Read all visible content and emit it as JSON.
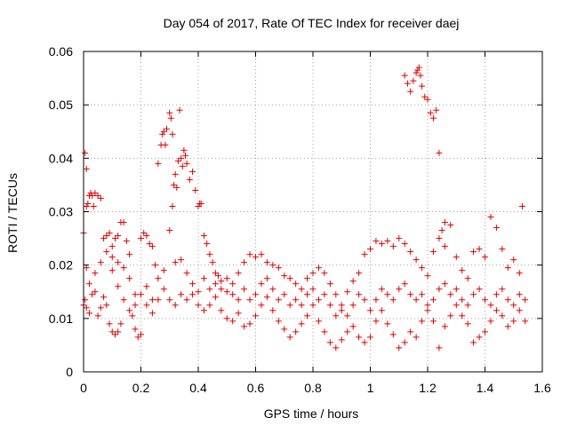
{
  "chart_data": {
    "type": "scatter",
    "title": "Day 054 of 2017, Rate Of TEC Index for receiver daej",
    "xlabel": "GPS time / hours",
    "ylabel": "ROTI / TECUs",
    "xlim": [
      0,
      1.6
    ],
    "ylim": [
      0,
      0.06
    ],
    "x_ticks": [
      0,
      0.2,
      0.4,
      0.6,
      0.8,
      1.0,
      1.2,
      1.4,
      1.6
    ],
    "x_tick_labels": [
      "0",
      "0.2",
      "0.4",
      "0.6",
      "0.8",
      "1",
      "1.2",
      "1.4",
      "1.6"
    ],
    "y_ticks": [
      0,
      0.01,
      0.02,
      0.03,
      0.04,
      0.05,
      0.06
    ],
    "y_tick_labels": [
      "0",
      "0.01",
      "0.02",
      "0.03",
      "0.04",
      "0.05",
      "0.06"
    ],
    "grid": true,
    "marker": "+",
    "marker_color": "#e00000",
    "series": [
      {
        "name": "ROTI",
        "points": [
          [
            0.0,
            0.026
          ],
          [
            0.0,
            0.0125
          ],
          [
            0.005,
            0.041
          ],
          [
            0.01,
            0.038
          ],
          [
            0.01,
            0.0195
          ],
          [
            0.01,
            0.031
          ],
          [
            0.015,
            0.0315
          ],
          [
            0.02,
            0.033
          ],
          [
            0.025,
            0.0335
          ],
          [
            0.03,
            0.033
          ],
          [
            0.035,
            0.031
          ],
          [
            0.04,
            0.0335
          ],
          [
            0.05,
            0.033
          ],
          [
            0.06,
            0.0325
          ],
          [
            0.005,
            0.0135
          ],
          [
            0.01,
            0.012
          ],
          [
            0.02,
            0.011
          ],
          [
            0.03,
            0.0145
          ],
          [
            0.04,
            0.015
          ],
          [
            0.05,
            0.0105
          ],
          [
            0.06,
            0.012
          ],
          [
            0.07,
            0.014
          ],
          [
            0.08,
            0.0125
          ],
          [
            0.09,
            0.009
          ],
          [
            0.1,
            0.0075
          ],
          [
            0.11,
            0.007
          ],
          [
            0.12,
            0.0075
          ],
          [
            0.13,
            0.009
          ],
          [
            0.07,
            0.025
          ],
          [
            0.08,
            0.0255
          ],
          [
            0.09,
            0.026
          ],
          [
            0.1,
            0.0235
          ],
          [
            0.11,
            0.025
          ],
          [
            0.12,
            0.0255
          ],
          [
            0.13,
            0.028
          ],
          [
            0.14,
            0.028
          ],
          [
            0.15,
            0.0245
          ],
          [
            0.16,
            0.022
          ],
          [
            0.17,
            0.0105
          ],
          [
            0.18,
            0.008
          ],
          [
            0.19,
            0.0065
          ],
          [
            0.2,
            0.007
          ],
          [
            0.2,
            0.025
          ],
          [
            0.21,
            0.026
          ],
          [
            0.22,
            0.0255
          ],
          [
            0.23,
            0.024
          ],
          [
            0.24,
            0.0235
          ],
          [
            0.25,
            0.02
          ],
          [
            0.26,
            0.039
          ],
          [
            0.27,
            0.0425
          ],
          [
            0.275,
            0.0445
          ],
          [
            0.28,
            0.045
          ],
          [
            0.285,
            0.0425
          ],
          [
            0.29,
            0.0455
          ],
          [
            0.3,
            0.0485
          ],
          [
            0.305,
            0.0475
          ],
          [
            0.31,
            0.0445
          ],
          [
            0.315,
            0.035
          ],
          [
            0.32,
            0.037
          ],
          [
            0.325,
            0.0345
          ],
          [
            0.33,
            0.0395
          ],
          [
            0.335,
            0.049
          ],
          [
            0.34,
            0.04
          ],
          [
            0.345,
            0.0385
          ],
          [
            0.35,
            0.0415
          ],
          [
            0.355,
            0.0405
          ],
          [
            0.36,
            0.039
          ],
          [
            0.37,
            0.036
          ],
          [
            0.38,
            0.0375
          ],
          [
            0.39,
            0.034
          ],
          [
            0.4,
            0.031
          ],
          [
            0.405,
            0.0315
          ],
          [
            0.41,
            0.0315
          ],
          [
            0.3,
            0.0265
          ],
          [
            0.31,
            0.031
          ],
          [
            0.42,
            0.0255
          ],
          [
            0.43,
            0.024
          ],
          [
            0.44,
            0.022
          ],
          [
            0.45,
            0.0205
          ],
          [
            0.46,
            0.0185
          ],
          [
            0.47,
            0.018
          ],
          [
            0.48,
            0.017
          ],
          [
            0.5,
            0.015
          ],
          [
            0.52,
            0.0145
          ],
          [
            0.54,
            0.0135
          ],
          [
            0.56,
            0.0205
          ],
          [
            0.58,
            0.022
          ],
          [
            0.6,
            0.0215
          ],
          [
            0.62,
            0.022
          ],
          [
            0.64,
            0.0205
          ],
          [
            0.66,
            0.02
          ],
          [
            0.68,
            0.0195
          ],
          [
            0.7,
            0.018
          ],
          [
            0.72,
            0.0175
          ],
          [
            0.74,
            0.0165
          ],
          [
            0.76,
            0.0155
          ],
          [
            0.78,
            0.0175
          ],
          [
            0.8,
            0.0185
          ],
          [
            0.82,
            0.0195
          ],
          [
            0.84,
            0.0185
          ],
          [
            0.86,
            0.0165
          ],
          [
            0.88,
            0.0145
          ],
          [
            0.9,
            0.0125
          ],
          [
            0.92,
            0.015
          ],
          [
            0.94,
            0.017
          ],
          [
            0.96,
            0.0185
          ],
          [
            0.98,
            0.022
          ],
          [
            1.0,
            0.023
          ],
          [
            1.02,
            0.0245
          ],
          [
            1.04,
            0.024
          ],
          [
            1.06,
            0.0245
          ],
          [
            1.08,
            0.0235
          ],
          [
            1.1,
            0.025
          ],
          [
            1.12,
            0.024
          ],
          [
            1.14,
            0.0225
          ],
          [
            1.16,
            0.021
          ],
          [
            1.18,
            0.0195
          ],
          [
            1.2,
            0.018
          ],
          [
            1.22,
            0.0225
          ],
          [
            1.24,
            0.025
          ],
          [
            1.26,
            0.028
          ],
          [
            1.28,
            0.0275
          ],
          [
            1.3,
            0.0215
          ],
          [
            1.32,
            0.019
          ],
          [
            1.34,
            0.0175
          ],
          [
            1.36,
            0.0225
          ],
          [
            1.38,
            0.023
          ],
          [
            1.4,
            0.0215
          ],
          [
            1.42,
            0.029
          ],
          [
            1.44,
            0.027
          ],
          [
            1.46,
            0.023
          ],
          [
            1.48,
            0.0195
          ],
          [
            1.5,
            0.021
          ],
          [
            1.52,
            0.0185
          ],
          [
            1.53,
            0.031
          ],
          [
            1.54,
            0.0095
          ],
          [
            1.12,
            0.0555
          ],
          [
            1.13,
            0.054
          ],
          [
            1.14,
            0.0525
          ],
          [
            1.15,
            0.0545
          ],
          [
            1.16,
            0.056
          ],
          [
            1.165,
            0.0565
          ],
          [
            1.17,
            0.057
          ],
          [
            1.175,
            0.0555
          ],
          [
            1.18,
            0.0535
          ],
          [
            1.19,
            0.0515
          ],
          [
            1.2,
            0.051
          ],
          [
            1.21,
            0.0485
          ],
          [
            1.22,
            0.0475
          ],
          [
            1.23,
            0.049
          ],
          [
            1.24,
            0.041
          ],
          [
            1.25,
            0.0265
          ],
          [
            1.26,
            0.0235
          ],
          [
            0.1,
            0.019
          ],
          [
            0.12,
            0.016
          ],
          [
            0.14,
            0.0195
          ],
          [
            0.16,
            0.0175
          ],
          [
            0.18,
            0.0145
          ],
          [
            0.22,
            0.016
          ],
          [
            0.24,
            0.0135
          ],
          [
            0.26,
            0.0175
          ],
          [
            0.28,
            0.019
          ],
          [
            0.32,
            0.0205
          ],
          [
            0.34,
            0.021
          ],
          [
            0.36,
            0.0185
          ],
          [
            0.38,
            0.0165
          ],
          [
            0.4,
            0.015
          ],
          [
            0.42,
            0.0175
          ],
          [
            0.44,
            0.0155
          ],
          [
            0.46,
            0.014
          ],
          [
            0.48,
            0.0115
          ],
          [
            0.5,
            0.01
          ],
          [
            0.52,
            0.0095
          ],
          [
            0.54,
            0.011
          ],
          [
            0.56,
            0.0085
          ],
          [
            0.58,
            0.009
          ],
          [
            0.6,
            0.0105
          ],
          [
            0.62,
            0.0125
          ],
          [
            0.64,
            0.014
          ],
          [
            0.66,
            0.0115
          ],
          [
            0.68,
            0.0095
          ],
          [
            0.7,
            0.008
          ],
          [
            0.72,
            0.0065
          ],
          [
            0.74,
            0.0075
          ],
          [
            0.76,
            0.009
          ],
          [
            0.78,
            0.0105
          ],
          [
            0.8,
            0.0125
          ],
          [
            0.82,
            0.0095
          ],
          [
            0.84,
            0.0075
          ],
          [
            0.86,
            0.0055
          ],
          [
            0.88,
            0.0045
          ],
          [
            0.9,
            0.006
          ],
          [
            0.92,
            0.0075
          ],
          [
            0.94,
            0.0085
          ],
          [
            0.96,
            0.0065
          ],
          [
            0.98,
            0.0055
          ],
          [
            1.0,
            0.0065
          ],
          [
            1.02,
            0.0095
          ],
          [
            1.04,
            0.0115
          ],
          [
            1.06,
            0.009
          ],
          [
            1.08,
            0.007
          ],
          [
            1.1,
            0.0045
          ],
          [
            1.12,
            0.0055
          ],
          [
            1.14,
            0.0075
          ],
          [
            1.16,
            0.0065
          ],
          [
            1.18,
            0.0095
          ],
          [
            1.2,
            0.0115
          ],
          [
            1.22,
            0.0095
          ],
          [
            1.24,
            0.0045
          ],
          [
            1.26,
            0.0085
          ],
          [
            1.28,
            0.0105
          ],
          [
            1.3,
            0.0125
          ],
          [
            1.32,
            0.0105
          ],
          [
            1.34,
            0.009
          ],
          [
            1.36,
            0.0055
          ],
          [
            1.38,
            0.0065
          ],
          [
            1.4,
            0.0075
          ],
          [
            1.42,
            0.0095
          ],
          [
            1.44,
            0.0115
          ],
          [
            1.46,
            0.0105
          ],
          [
            1.48,
            0.0085
          ],
          [
            1.5,
            0.0095
          ],
          [
            1.52,
            0.0115
          ],
          [
            0.02,
            0.0165
          ],
          [
            0.04,
            0.0185
          ],
          [
            0.06,
            0.0205
          ],
          [
            0.08,
            0.0225
          ],
          [
            0.1,
            0.0215
          ],
          [
            0.12,
            0.0205
          ],
          [
            0.14,
            0.0135
          ],
          [
            0.16,
            0.0115
          ],
          [
            0.18,
            0.0125
          ],
          [
            0.2,
            0.0145
          ],
          [
            0.22,
            0.0125
          ],
          [
            0.24,
            0.011
          ],
          [
            0.26,
            0.0135
          ],
          [
            0.28,
            0.0155
          ],
          [
            0.3,
            0.0135
          ],
          [
            0.32,
            0.0125
          ],
          [
            0.34,
            0.0145
          ],
          [
            0.36,
            0.0135
          ],
          [
            0.38,
            0.0145
          ],
          [
            0.4,
            0.0125
          ],
          [
            0.42,
            0.0115
          ],
          [
            0.44,
            0.0125
          ],
          [
            0.46,
            0.0165
          ],
          [
            0.48,
            0.0155
          ],
          [
            0.5,
            0.0175
          ],
          [
            0.52,
            0.0165
          ],
          [
            0.54,
            0.0185
          ],
          [
            0.56,
            0.0155
          ],
          [
            0.58,
            0.0135
          ],
          [
            0.6,
            0.0145
          ],
          [
            0.62,
            0.0165
          ],
          [
            0.64,
            0.0175
          ],
          [
            0.66,
            0.0155
          ],
          [
            0.68,
            0.0135
          ],
          [
            0.7,
            0.0145
          ],
          [
            0.72,
            0.0125
          ],
          [
            0.74,
            0.0135
          ],
          [
            0.76,
            0.0125
          ],
          [
            0.78,
            0.0145
          ],
          [
            0.8,
            0.0155
          ],
          [
            0.82,
            0.0135
          ],
          [
            0.84,
            0.0145
          ],
          [
            0.86,
            0.0125
          ],
          [
            0.88,
            0.0105
          ],
          [
            0.9,
            0.0115
          ],
          [
            0.92,
            0.0105
          ],
          [
            0.94,
            0.0125
          ],
          [
            0.96,
            0.0145
          ],
          [
            0.98,
            0.0135
          ],
          [
            1.0,
            0.0115
          ],
          [
            1.02,
            0.0135
          ],
          [
            1.04,
            0.0155
          ],
          [
            1.06,
            0.0145
          ],
          [
            1.08,
            0.0135
          ],
          [
            1.1,
            0.0155
          ],
          [
            1.12,
            0.0165
          ],
          [
            1.14,
            0.0145
          ],
          [
            1.16,
            0.0135
          ],
          [
            1.18,
            0.0145
          ],
          [
            1.2,
            0.0125
          ],
          [
            1.22,
            0.0135
          ],
          [
            1.24,
            0.0155
          ],
          [
            1.26,
            0.0165
          ],
          [
            1.28,
            0.0145
          ],
          [
            1.3,
            0.0155
          ],
          [
            1.32,
            0.0135
          ],
          [
            1.34,
            0.0125
          ],
          [
            1.36,
            0.0145
          ],
          [
            1.38,
            0.0155
          ],
          [
            1.4,
            0.0135
          ],
          [
            1.42,
            0.0125
          ],
          [
            1.44,
            0.0145
          ],
          [
            1.46,
            0.0155
          ],
          [
            1.48,
            0.0135
          ],
          [
            1.5,
            0.0125
          ],
          [
            1.52,
            0.0145
          ],
          [
            1.54,
            0.0135
          ]
        ]
      }
    ]
  }
}
